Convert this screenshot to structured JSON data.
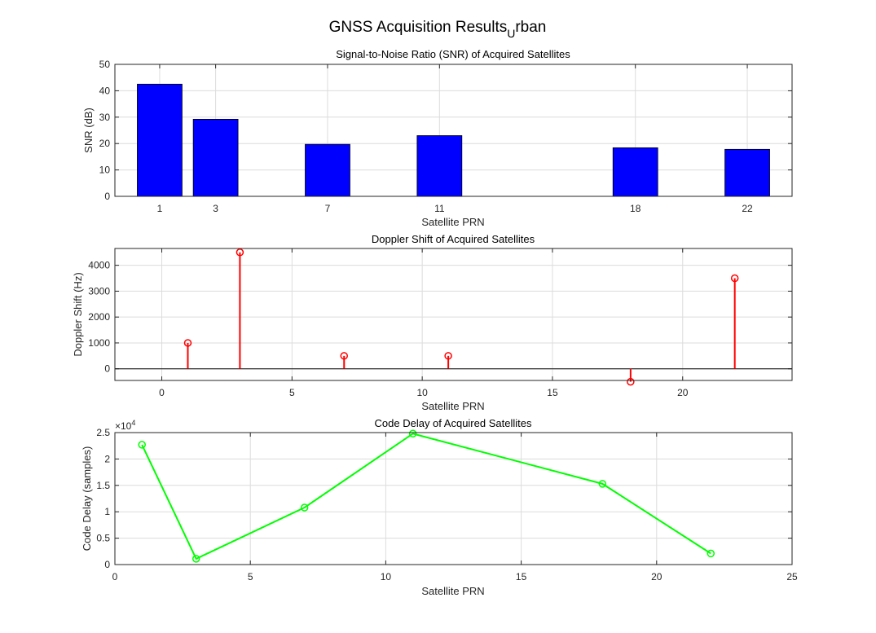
{
  "figure": {
    "title_main": "GNSS Acquisition Results",
    "title_sub": "U",
    "title_rest": "rban"
  },
  "chart_data": [
    {
      "type": "bar",
      "title": "Signal-to-Noise Ratio (SNR) of Acquired Satellites",
      "xlabel": "Satellite PRN",
      "ylabel": "SNR (dB)",
      "categories": [
        1,
        3,
        7,
        11,
        18,
        22
      ],
      "values": [
        42.5,
        29.2,
        19.7,
        23.0,
        18.4,
        17.8
      ],
      "xlim": [
        -0.6,
        23.6
      ],
      "ylim": [
        0,
        50
      ],
      "yticks": [
        0,
        10,
        20,
        30,
        40,
        50
      ],
      "grid": true,
      "color": "#0000ff"
    },
    {
      "type": "stem",
      "title": "Doppler Shift of Acquired Satellites",
      "xlabel": "Satellite PRN",
      "ylabel": "Doppler Shift (Hz)",
      "x": [
        1,
        3,
        7,
        11,
        18,
        22
      ],
      "y": [
        1000,
        4500,
        500,
        500,
        -500,
        3500
      ],
      "xlim": [
        -1.8,
        24.2
      ],
      "ylim": [
        -450,
        4650
      ],
      "xticks": [
        0,
        5,
        10,
        15,
        20
      ],
      "yticks": [
        0,
        1000,
        2000,
        3000,
        4000
      ],
      "grid": true,
      "color": "#ff0000"
    },
    {
      "type": "line",
      "title": "Code Delay of Acquired Satellites",
      "xlabel": "Satellite PRN",
      "ylabel": "Code Delay (samples)",
      "exponent_label": "×10",
      "exponent_power": "4",
      "x": [
        1,
        3,
        7,
        11,
        18,
        22
      ],
      "y": [
        22700,
        1100,
        10800,
        24800,
        15300,
        2100
      ],
      "xlim": [
        0,
        25
      ],
      "ylim": [
        0,
        25000
      ],
      "xticks": [
        0,
        5,
        10,
        15,
        20,
        25
      ],
      "yticks": [
        0,
        5000,
        10000,
        15000,
        20000,
        25000
      ],
      "ytick_labels": [
        "0",
        "0.5",
        "1",
        "1.5",
        "2",
        "2.5"
      ],
      "grid": true,
      "color": "#00ff00"
    }
  ]
}
